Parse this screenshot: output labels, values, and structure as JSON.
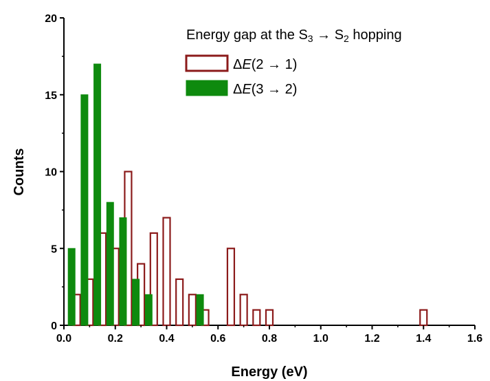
{
  "chart_data": {
    "type": "bar",
    "xlabel": "Energy (eV)",
    "ylabel": "Counts",
    "xlim": [
      0.0,
      1.6
    ],
    "ylim": [
      0,
      20
    ],
    "x_ticks": [
      "0.0",
      "0.2",
      "0.4",
      "0.6",
      "0.8",
      "1.0",
      "1.2",
      "1.4",
      "1.6"
    ],
    "y_ticks": [
      "0",
      "5",
      "10",
      "15",
      "20"
    ],
    "legend": {
      "placement": "top-right",
      "title": {
        "prefix": "Energy gap at the S",
        "sub1": "3",
        "arrow": " → S",
        "sub2": "2",
        "suffix": " hopping"
      }
    },
    "series": [
      {
        "name": "ΔE(2 → 1)",
        "label_parts": {
          "delta": "Δ",
          "E": "E",
          "rest": "(2 → 1)"
        },
        "color": "#8b1a1a",
        "style": "open",
        "x": [
          0.05,
          0.1,
          0.15,
          0.2,
          0.25,
          0.3,
          0.35,
          0.4,
          0.45,
          0.5,
          0.55,
          0.65,
          0.7,
          0.75,
          0.8,
          1.4
        ],
        "values": [
          2,
          3,
          6,
          5,
          10,
          4,
          6,
          7,
          3,
          2,
          1,
          5,
          2,
          1,
          1,
          1
        ]
      },
      {
        "name": "ΔE(3 → 2)",
        "label_parts": {
          "delta": "Δ",
          "E": "E",
          "rest": "(3 → 2)"
        },
        "color": "#0e8a0e",
        "style": "filled",
        "x": [
          0.03,
          0.08,
          0.13,
          0.18,
          0.23,
          0.28,
          0.33,
          0.53
        ],
        "values": [
          5,
          15,
          17,
          8,
          7,
          3,
          2,
          2
        ]
      }
    ]
  }
}
